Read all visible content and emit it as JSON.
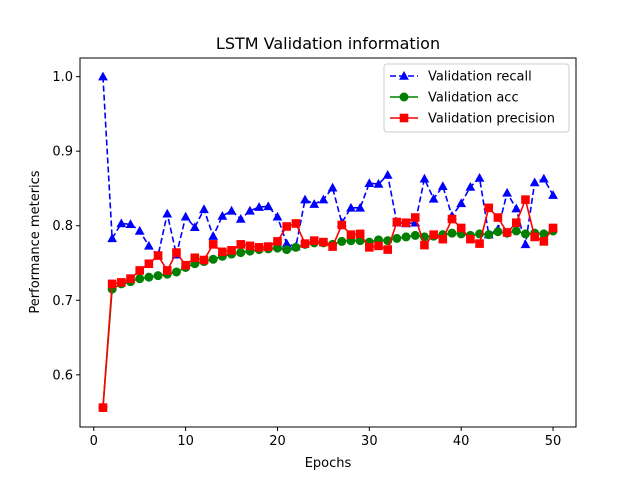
{
  "chart_data": {
    "type": "line",
    "title": "LSTM Validation information",
    "xlabel": "Epochs",
    "ylabel": "Performance meterics",
    "xlim": [
      -1.5,
      52.5
    ],
    "ylim": [
      0.53,
      1.025
    ],
    "xticks": [
      0,
      10,
      20,
      30,
      40,
      50
    ],
    "yticks": [
      0.6,
      0.7,
      0.8,
      0.9,
      1.0
    ],
    "xtick_labels": [
      "0",
      "10",
      "20",
      "30",
      "40",
      "50"
    ],
    "ytick_labels": [
      "0.6",
      "0.7",
      "0.8",
      "0.9",
      "1.0"
    ],
    "grid": false,
    "legend_position": "top-right",
    "x": [
      1,
      2,
      3,
      4,
      5,
      6,
      7,
      8,
      9,
      10,
      11,
      12,
      13,
      14,
      15,
      16,
      17,
      18,
      19,
      20,
      21,
      22,
      23,
      24,
      25,
      26,
      27,
      28,
      29,
      30,
      31,
      32,
      33,
      34,
      35,
      36,
      37,
      38,
      39,
      40,
      41,
      42,
      43,
      44,
      45,
      46,
      47,
      48,
      49,
      50
    ],
    "series": [
      {
        "name": "Validation recall",
        "color": "#0000ff",
        "linestyle": "dashed",
        "marker": "triangle",
        "values": [
          1.0,
          0.783,
          0.803,
          0.802,
          0.793,
          0.773,
          0.76,
          0.816,
          0.761,
          0.812,
          0.798,
          0.822,
          0.786,
          0.813,
          0.82,
          0.809,
          0.82,
          0.825,
          0.826,
          0.812,
          0.776,
          0.772,
          0.835,
          0.829,
          0.835,
          0.851,
          0.804,
          0.824,
          0.824,
          0.857,
          0.856,
          0.868,
          0.804,
          0.803,
          0.804,
          0.863,
          0.836,
          0.853,
          0.813,
          0.83,
          0.852,
          0.864,
          0.788,
          0.795,
          0.844,
          0.823,
          0.775,
          0.858,
          0.863,
          0.841
        ]
      },
      {
        "name": "Validation acc",
        "color": "#008000",
        "linestyle": "solid",
        "marker": "circle",
        "values": [
          0.556,
          0.715,
          0.722,
          0.725,
          0.729,
          0.731,
          0.733,
          0.735,
          0.738,
          0.744,
          0.749,
          0.752,
          0.755,
          0.759,
          0.762,
          0.764,
          0.766,
          0.768,
          0.769,
          0.77,
          0.768,
          0.771,
          0.775,
          0.777,
          0.777,
          0.775,
          0.779,
          0.78,
          0.78,
          0.778,
          0.781,
          0.78,
          0.783,
          0.785,
          0.787,
          0.785,
          0.786,
          0.788,
          0.79,
          0.789,
          0.787,
          0.789,
          0.788,
          0.792,
          0.79,
          0.793,
          0.789,
          0.79,
          0.789,
          0.793
        ]
      },
      {
        "name": "Validation precision",
        "color": "#ff0000",
        "linestyle": "solid",
        "marker": "square",
        "values": [
          0.556,
          0.722,
          0.724,
          0.729,
          0.74,
          0.749,
          0.76,
          0.74,
          0.764,
          0.747,
          0.757,
          0.754,
          0.775,
          0.765,
          0.767,
          0.775,
          0.773,
          0.771,
          0.772,
          0.779,
          0.799,
          0.803,
          0.776,
          0.78,
          0.778,
          0.772,
          0.801,
          0.788,
          0.789,
          0.771,
          0.773,
          0.768,
          0.805,
          0.804,
          0.811,
          0.774,
          0.788,
          0.782,
          0.809,
          0.797,
          0.782,
          0.776,
          0.824,
          0.811,
          0.791,
          0.804,
          0.835,
          0.785,
          0.779,
          0.797
        ]
      }
    ]
  }
}
